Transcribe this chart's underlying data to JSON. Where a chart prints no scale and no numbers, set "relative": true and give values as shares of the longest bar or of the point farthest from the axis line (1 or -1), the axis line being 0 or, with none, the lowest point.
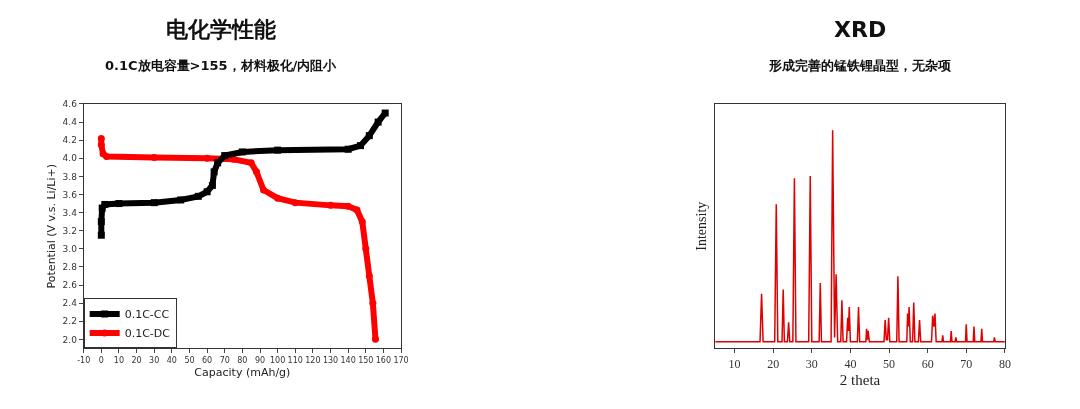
{
  "chart_data": [
    {
      "type": "line",
      "title": "电化学性能",
      "subtitle": "0.1C放电容量>155，材料极化/内阻小",
      "xlabel": "Capacity (mAh/g)",
      "ylabel": "Potential (V v.s. Li/Li+)",
      "xlim": [
        -10,
        170
      ],
      "xticks": [
        -10,
        0,
        10,
        20,
        30,
        40,
        50,
        60,
        70,
        80,
        90,
        100,
        110,
        120,
        130,
        140,
        150,
        160,
        170
      ],
      "ylim": [
        1.9,
        4.6
      ],
      "yticks": [
        {
          "value": 2.0,
          "label": "2.0"
        },
        2.2,
        2.4,
        2.6,
        2.8,
        {
          "value": 3.0,
          "label": "3.0"
        },
        3.2,
        3.4,
        3.6,
        3.8,
        {
          "value": 4.0,
          "label": "4.0"
        },
        4.2,
        4.4,
        4.6
      ],
      "legend": "bottom left",
      "series": [
        {
          "name": "0.1C-CC",
          "color": "#000000",
          "marker": "square",
          "x": [
            0,
            0,
            0.5,
            2,
            10,
            30,
            45,
            55,
            60,
            63,
            64,
            66,
            70,
            80,
            100,
            140,
            147,
            152,
            157,
            161
          ],
          "values": [
            3.15,
            3.3,
            3.45,
            3.49,
            3.5,
            3.51,
            3.54,
            3.58,
            3.63,
            3.7,
            3.85,
            3.95,
            4.03,
            4.07,
            4.09,
            4.1,
            4.14,
            4.25,
            4.4,
            4.5
          ]
        },
        {
          "name": "0.1C-DC",
          "color": "#ff0000",
          "marker": "circle",
          "x": [
            0,
            0,
            1,
            3,
            30,
            60,
            75,
            85,
            88,
            92,
            100,
            110,
            130,
            140,
            145,
            148,
            150,
            152,
            154,
            155.5
          ],
          "values": [
            4.22,
            4.15,
            4.05,
            4.02,
            4.01,
            4.0,
            3.99,
            3.95,
            3.85,
            3.65,
            3.56,
            3.51,
            3.48,
            3.47,
            3.43,
            3.3,
            3.0,
            2.7,
            2.4,
            2.0
          ]
        }
      ]
    },
    {
      "type": "line",
      "title": "XRD",
      "subtitle": "形成完善的锰铁锂晶型，无杂项",
      "xlabel": "2 theta",
      "ylabel": "Intensity",
      "relative": true,
      "xlim": [
        5,
        80
      ],
      "xticks": [
        10,
        20,
        30,
        40,
        50,
        60,
        70,
        80
      ],
      "legend": false,
      "series": [
        {
          "color": "#e00000",
          "marker": "none",
          "x": [
            5,
            16.6,
            17.0,
            17.4,
            20.4,
            20.8,
            21.2,
            22.3,
            22.6,
            22.9,
            23.7,
            24.0,
            24.3,
            25.1,
            25.5,
            25.9,
            29.2,
            29.6,
            30.0,
            31.9,
            32.2,
            32.5,
            35.0,
            35.4,
            35.9,
            36.3,
            36.7,
            37.5,
            37.8,
            38.1,
            39.0,
            39.3,
            39.5,
            39.7,
            40.0,
            41.8,
            42.1,
            42.4,
            44.0,
            44.2,
            44.4,
            44.6,
            44.9,
            48.7,
            49.0,
            49.3,
            49.6,
            49.9,
            50.2,
            52.0,
            52.3,
            52.6,
            54.6,
            54.8,
            55.0,
            55.2,
            55.5,
            56.1,
            56.4,
            56.7,
            57.6,
            57.9,
            58.2,
            61.0,
            61.3,
            61.6,
            61.9,
            62.2,
            63.7,
            63.9,
            64.1,
            65.9,
            66.1,
            66.3,
            67.1,
            67.3,
            67.5,
            69.8,
            70.0,
            70.2,
            71.8,
            72.0,
            72.2,
            73.8,
            74.0,
            74.2,
            77.1,
            77.3,
            77.5,
            80
          ],
          "values": [
            0.03,
            0.03,
            0.25,
            0.03,
            0.03,
            0.66,
            0.03,
            0.03,
            0.27,
            0.03,
            0.03,
            0.12,
            0.03,
            0.03,
            0.78,
            0.03,
            0.03,
            0.79,
            0.03,
            0.03,
            0.3,
            0.03,
            0.03,
            1.0,
            0.05,
            0.34,
            0.03,
            0.03,
            0.22,
            0.03,
            0.03,
            0.14,
            0.08,
            0.19,
            0.03,
            0.03,
            0.19,
            0.03,
            0.03,
            0.09,
            0.04,
            0.08,
            0.03,
            0.03,
            0.13,
            0.04,
            0.04,
            0.14,
            0.03,
            0.03,
            0.33,
            0.03,
            0.03,
            0.16,
            0.1,
            0.19,
            0.03,
            0.03,
            0.21,
            0.03,
            0.03,
            0.13,
            0.03,
            0.03,
            0.15,
            0.1,
            0.16,
            0.03,
            0.03,
            0.06,
            0.03,
            0.03,
            0.08,
            0.03,
            0.03,
            0.05,
            0.03,
            0.03,
            0.11,
            0.03,
            0.03,
            0.1,
            0.03,
            0.03,
            0.09,
            0.03,
            0.03,
            0.05,
            0.03,
            0.03
          ]
        }
      ]
    }
  ]
}
